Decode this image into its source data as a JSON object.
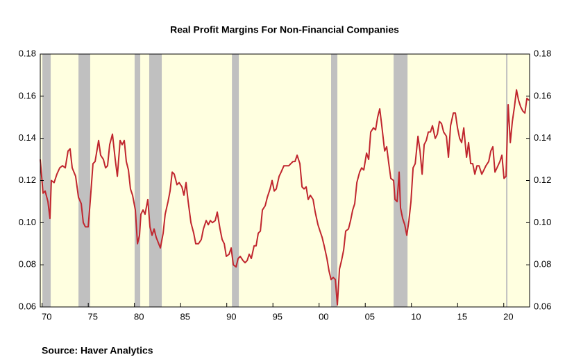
{
  "chart_data": {
    "type": "line",
    "title": "Real Profit Margins For Non-Financial Companies",
    "source": "Source:  Haver Analytics",
    "xlim": [
      1969.8,
      2022.8
    ],
    "xticks": [
      {
        "value": 1970,
        "label": "70"
      },
      {
        "value": 1975,
        "label": "75"
      },
      {
        "value": 1980,
        "label": "80"
      },
      {
        "value": 1985,
        "label": "85"
      },
      {
        "value": 1990,
        "label": "90"
      },
      {
        "value": 1995,
        "label": "95"
      },
      {
        "value": 2000,
        "label": "00"
      },
      {
        "value": 2005,
        "label": "05"
      },
      {
        "value": 2010,
        "label": "10"
      },
      {
        "value": 2015,
        "label": "15"
      },
      {
        "value": 2020,
        "label": "20"
      }
    ],
    "ylim": [
      0.06,
      0.18
    ],
    "yticks": [
      0.06,
      0.08,
      {
        "value": 0.1,
        "label": "0.10"
      },
      0.12,
      0.14,
      0.16,
      0.18
    ],
    "y2lim": [
      0.06,
      0.18
    ],
    "y2ticks": [
      0.06,
      0.08,
      {
        "value": 0.1,
        "label": "0.10"
      },
      0.12,
      0.14,
      0.16,
      0.18
    ],
    "background": "#ffffe0",
    "recession_color": "#c0c0c0",
    "recessions": [
      [
        1970.03,
        1970.93
      ],
      [
        1973.94,
        1975.21
      ],
      [
        1980.02,
        1980.63
      ],
      [
        1981.6,
        1982.96
      ],
      [
        1990.56,
        1991.31
      ],
      [
        2001.3,
        2001.98
      ],
      [
        2008.07,
        2009.58
      ],
      [
        2020.25,
        2020.4
      ]
    ],
    "x": [
      1969.8,
      1970.1,
      1970.33,
      1970.63,
      1970.85,
      1971.0,
      1971.3,
      1971.6,
      1971.91,
      1972.21,
      1972.51,
      1972.81,
      1973.03,
      1973.26,
      1973.63,
      1973.94,
      1974.24,
      1974.46,
      1974.69,
      1974.99,
      1975.21,
      1975.51,
      1975.74,
      1976.12,
      1976.34,
      1976.64,
      1976.87,
      1977.09,
      1977.32,
      1977.62,
      1977.92,
      1978.15,
      1978.45,
      1978.67,
      1978.9,
      1979.12,
      1979.35,
      1979.57,
      1979.8,
      1980.1,
      1980.33,
      1980.55,
      1980.7,
      1980.93,
      1981.15,
      1981.45,
      1981.68,
      1981.91,
      1982.13,
      1982.36,
      1982.81,
      1983.11,
      1983.33,
      1983.64,
      1983.86,
      1984.09,
      1984.31,
      1984.61,
      1984.84,
      1985.14,
      1985.36,
      1985.59,
      1985.82,
      1986.12,
      1986.42,
      1986.64,
      1986.94,
      1987.24,
      1987.47,
      1987.77,
      1988.0,
      1988.22,
      1988.45,
      1988.75,
      1988.97,
      1989.27,
      1989.5,
      1989.73,
      1989.95,
      1990.25,
      1990.48,
      1990.71,
      1991.01,
      1991.23,
      1991.46,
      1991.76,
      1991.98,
      1992.21,
      1992.43,
      1992.66,
      1992.96,
      1993.18,
      1993.41,
      1993.64,
      1993.86,
      1994.16,
      1994.39,
      1994.69,
      1994.91,
      1995.14,
      1995.36,
      1995.67,
      1995.89,
      1996.19,
      1996.42,
      1996.72,
      1996.94,
      1997.17,
      1997.39,
      1997.62,
      1997.92,
      1998.15,
      1998.37,
      1998.6,
      1998.82,
      1999.05,
      1999.35,
      1999.58,
      1999.88,
      2000.1,
      2000.33,
      2000.55,
      2000.85,
      2001.08,
      2001.3,
      2001.53,
      2001.76,
      2001.98,
      2002.21,
      2002.43,
      2002.66,
      2002.88,
      2003.18,
      2003.41,
      2003.64,
      2003.86,
      2004.09,
      2004.39,
      2004.61,
      2004.84,
      2005.14,
      2005.37,
      2005.59,
      2005.89,
      2006.12,
      2006.34,
      2006.57,
      2006.79,
      2007.1,
      2007.32,
      2007.55,
      2007.77,
      2008.07,
      2008.22,
      2008.45,
      2008.67,
      2008.82,
      2009.05,
      2009.28,
      2009.5,
      2009.73,
      2009.95,
      2010.18,
      2010.41,
      2010.71,
      2010.93,
      2011.16,
      2011.38,
      2011.61,
      2011.83,
      2012.06,
      2012.28,
      2012.58,
      2012.81,
      2013.03,
      2013.26,
      2013.49,
      2013.79,
      2014.01,
      2014.24,
      2014.54,
      2014.76,
      2014.99,
      2015.22,
      2015.44,
      2015.67,
      2015.97,
      2016.19,
      2016.42,
      2016.64,
      2016.87,
      2017.1,
      2017.32,
      2017.62,
      2017.85,
      2018.07,
      2018.37,
      2018.6,
      2018.82,
      2019.05,
      2019.27,
      2019.58,
      2019.8,
      2020.03,
      2020.25,
      2020.48,
      2020.71,
      2020.93,
      2021.16,
      2021.38,
      2021.61,
      2021.83,
      2022.06,
      2022.29,
      2022.51,
      2022.74
    ],
    "series": [
      {
        "name": "Real Profit Margins",
        "color": "#c0262e",
        "values": [
          0.13,
          0.114,
          0.115,
          0.11,
          0.102,
          0.12,
          0.119,
          0.123,
          0.126,
          0.127,
          0.126,
          0.134,
          0.135,
          0.126,
          0.122,
          0.112,
          0.109,
          0.1,
          0.098,
          0.098,
          0.11,
          0.128,
          0.129,
          0.139,
          0.132,
          0.13,
          0.126,
          0.127,
          0.137,
          0.142,
          0.13,
          0.122,
          0.139,
          0.137,
          0.139,
          0.129,
          0.125,
          0.116,
          0.113,
          0.106,
          0.09,
          0.094,
          0.104,
          0.106,
          0.104,
          0.111,
          0.098,
          0.094,
          0.097,
          0.093,
          0.088,
          0.095,
          0.104,
          0.11,
          0.115,
          0.124,
          0.123,
          0.118,
          0.119,
          0.117,
          0.113,
          0.119,
          0.11,
          0.1,
          0.095,
          0.09,
          0.09,
          0.092,
          0.097,
          0.101,
          0.099,
          0.101,
          0.1,
          0.101,
          0.105,
          0.097,
          0.092,
          0.09,
          0.084,
          0.085,
          0.088,
          0.08,
          0.079,
          0.083,
          0.084,
          0.082,
          0.081,
          0.082,
          0.085,
          0.083,
          0.089,
          0.089,
          0.095,
          0.096,
          0.106,
          0.108,
          0.112,
          0.116,
          0.12,
          0.115,
          0.116,
          0.122,
          0.124,
          0.127,
          0.127,
          0.127,
          0.128,
          0.129,
          0.129,
          0.132,
          0.128,
          0.117,
          0.116,
          0.117,
          0.111,
          0.113,
          0.111,
          0.105,
          0.099,
          0.096,
          0.093,
          0.089,
          0.083,
          0.077,
          0.073,
          0.074,
          0.073,
          0.061,
          0.078,
          0.082,
          0.087,
          0.096,
          0.097,
          0.101,
          0.106,
          0.109,
          0.119,
          0.124,
          0.126,
          0.125,
          0.133,
          0.13,
          0.143,
          0.145,
          0.144,
          0.15,
          0.154,
          0.146,
          0.134,
          0.136,
          0.128,
          0.121,
          0.12,
          0.111,
          0.11,
          0.124,
          0.107,
          0.102,
          0.099,
          0.094,
          0.101,
          0.11,
          0.126,
          0.128,
          0.141,
          0.134,
          0.123,
          0.137,
          0.139,
          0.143,
          0.143,
          0.146,
          0.14,
          0.142,
          0.148,
          0.147,
          0.143,
          0.141,
          0.131,
          0.146,
          0.152,
          0.152,
          0.145,
          0.14,
          0.138,
          0.145,
          0.131,
          0.138,
          0.128,
          0.128,
          0.123,
          0.127,
          0.127,
          0.123,
          0.125,
          0.127,
          0.129,
          0.134,
          0.136,
          0.124,
          0.126,
          0.129,
          0.132,
          0.121,
          0.122,
          0.156,
          0.138,
          0.148,
          0.155,
          0.163,
          0.158,
          0.155,
          0.153,
          0.152,
          0.159,
          0.158
        ]
      }
    ]
  }
}
